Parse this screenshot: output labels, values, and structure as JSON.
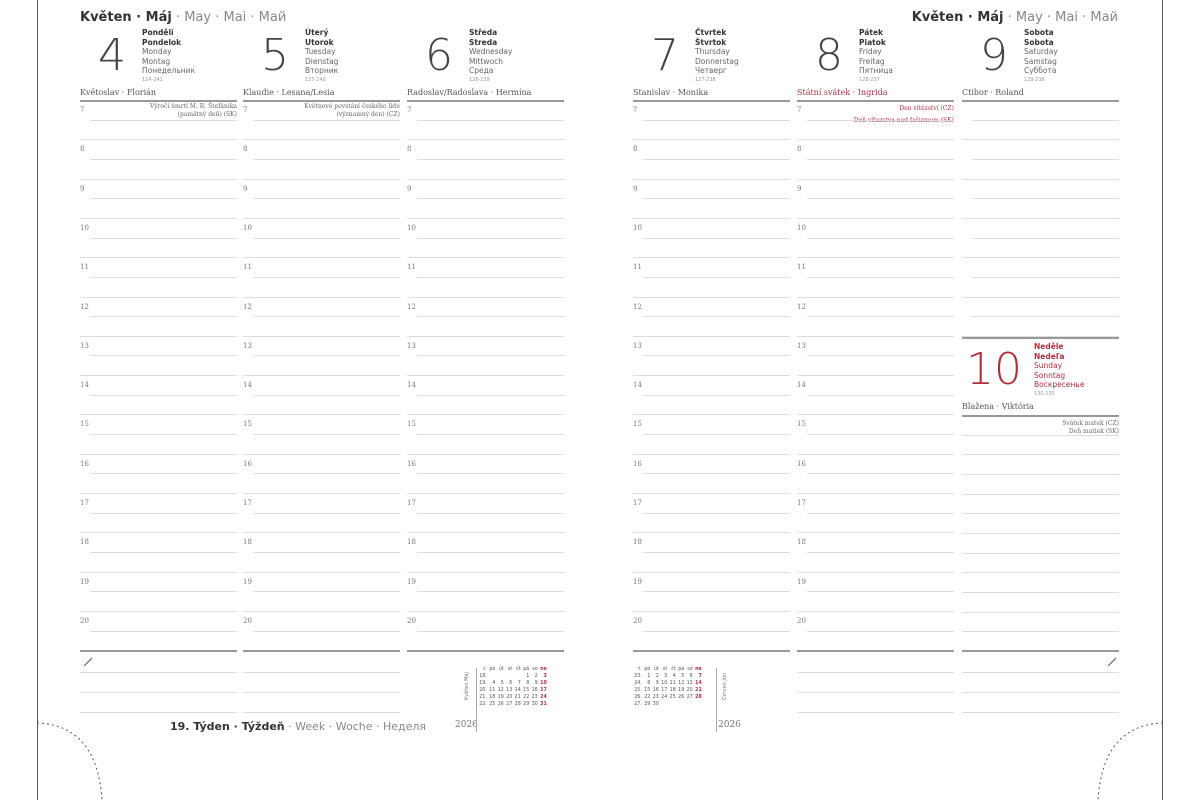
{
  "month_header": {
    "bold": "Květen · Máj",
    "other": " · May · Mai · Май"
  },
  "hours": [
    "7",
    "8",
    "9",
    "10",
    "11",
    "12",
    "13",
    "14",
    "15",
    "16",
    "17",
    "18",
    "19",
    "20"
  ],
  "days": [
    {
      "num": "4",
      "names": [
        "Pondělí",
        "Pondelok",
        "Monday",
        "Montag",
        "Понедельник"
      ],
      "count": "124·241",
      "nameday": "Květoslav · Florián",
      "notes": [
        "Výročí úmrtí M. R. Štefánika",
        "(pamätný deň) (SK)"
      ]
    },
    {
      "num": "5",
      "names": [
        "Úterý",
        "Utorok",
        "Tuesday",
        "Dienstag",
        "Вторник"
      ],
      "count": "125·240",
      "nameday": "Klaudie · Lesana/Lesia",
      "notes": [
        "Květnové povstání českého lidu",
        "(významný den) (CZ)"
      ]
    },
    {
      "num": "6",
      "names": [
        "Středa",
        "Streda",
        "Wednesday",
        "Mittwoch",
        "Среда"
      ],
      "count": "126·239",
      "nameday": "Radoslav/Radoslava · Hermína",
      "notes": []
    },
    {
      "num": "7",
      "names": [
        "Čtvrtek",
        "Štvrtok",
        "Thursday",
        "Donnerstag",
        "Четверг"
      ],
      "count": "127·238",
      "nameday": "Stanislav · Monika",
      "notes": []
    },
    {
      "num": "8",
      "names": [
        "Pátek",
        "Piatok",
        "Friday",
        "Freitag",
        "Пятница"
      ],
      "count": "128·237",
      "nameday": "Státní svátek · Ingrida",
      "nameday_red": true,
      "notes": [
        "Den vítězství (CZ)",
        "Deň víťazstva nad fašizmom (SK)"
      ],
      "notes_red": true
    },
    {
      "num": "9",
      "names": [
        "Sobota",
        "Sobota",
        "Saturday",
        "Samstag",
        "Суббота"
      ],
      "count": "129·236",
      "nameday": "Ctibor · Roland",
      "notes": []
    }
  ],
  "sunday": {
    "num": "10",
    "names": [
      "Neděle",
      "Nedeľa",
      "Sunday",
      "Sonntag",
      "Воскресенье"
    ],
    "count": "130·235",
    "nameday": "Blažena · Viktória",
    "notes": [
      "Svátek matek (CZ)",
      "Deň matiek (SK)"
    ]
  },
  "week_footer": {
    "bold": "19. Týden · Týždeň",
    "other": " · Week · Woche · Неделя"
  },
  "accent_color": "#b0303e",
  "mini_calendars": [
    {
      "label": "Květen Máj",
      "year": "2026",
      "header": [
        "t.",
        "po",
        "út",
        "st",
        "čt",
        "pá",
        "so",
        "ne"
      ],
      "rows": [
        [
          "18.",
          "",
          "",
          "",
          "",
          "1",
          "2",
          "3"
        ],
        [
          "19.",
          "4",
          "5",
          "6",
          "7",
          "8",
          "9",
          "10"
        ],
        [
          "20.",
          "11",
          "12",
          "13",
          "14",
          "15",
          "16",
          "17"
        ],
        [
          "21.",
          "18",
          "19",
          "20",
          "21",
          "22",
          "23",
          "24"
        ],
        [
          "22.",
          "25",
          "26",
          "27",
          "28",
          "29",
          "30",
          "31"
        ]
      ]
    },
    {
      "label": "Červen Jún",
      "year": "2026",
      "header": [
        "t.",
        "po",
        "út",
        "st",
        "čt",
        "pá",
        "so",
        "ne"
      ],
      "rows": [
        [
          "23.",
          "1",
          "2",
          "3",
          "4",
          "5",
          "6",
          "7"
        ],
        [
          "24.",
          "8",
          "9",
          "10",
          "11",
          "12",
          "13",
          "14"
        ],
        [
          "25.",
          "15",
          "16",
          "17",
          "18",
          "19",
          "20",
          "21"
        ],
        [
          "26.",
          "22",
          "23",
          "24",
          "25",
          "26",
          "27",
          "28"
        ],
        [
          "27.",
          "29",
          "30",
          "",
          "",
          "",
          "",
          ""
        ]
      ]
    }
  ]
}
